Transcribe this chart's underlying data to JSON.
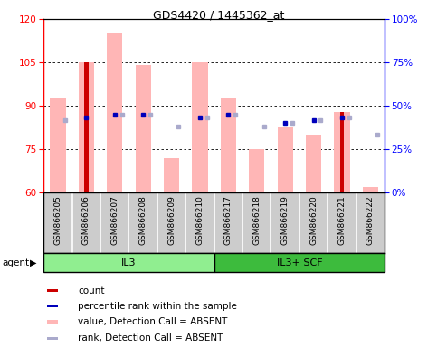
{
  "title": "GDS4420 / 1445362_at",
  "samples": [
    "GSM866205",
    "GSM866206",
    "GSM866207",
    "GSM866208",
    "GSM866209",
    "GSM866210",
    "GSM866217",
    "GSM866218",
    "GSM866219",
    "GSM866220",
    "GSM866221",
    "GSM866222"
  ],
  "pink_bar_tops": [
    93,
    105,
    115,
    104,
    72,
    105,
    93,
    75,
    83,
    80,
    88,
    62
  ],
  "red_bar_tops": [
    null,
    105,
    null,
    null,
    null,
    null,
    null,
    null,
    null,
    null,
    88,
    null
  ],
  "blue_square_y": [
    null,
    86,
    87,
    87,
    null,
    86,
    87,
    null,
    84,
    85,
    86,
    null
  ],
  "lavender_square_y": [
    85,
    null,
    87,
    87,
    83,
    86,
    87,
    83,
    84,
    85,
    86,
    80
  ],
  "ylim": [
    60,
    120
  ],
  "yticks_left": [
    60,
    75,
    90,
    105,
    120
  ],
  "yticks_right": [
    0,
    25,
    50,
    75,
    100
  ],
  "groups": [
    {
      "label": "IL3",
      "start": 0,
      "end": 5,
      "color": "#90ee90"
    },
    {
      "label": "IL3+ SCF",
      "start": 6,
      "end": 11,
      "color": "#3dbb3d"
    }
  ],
  "pink_color": "#ffb6b6",
  "red_color": "#cc0000",
  "blue_color": "#0000bb",
  "lavender_color": "#aaaacc",
  "legend_items": [
    {
      "color": "#cc0000",
      "label": "count"
    },
    {
      "color": "#0000bb",
      "label": "percentile rank within the sample"
    },
    {
      "color": "#ffb6b6",
      "label": "value, Detection Call = ABSENT"
    },
    {
      "color": "#aaaacc",
      "label": "rank, Detection Call = ABSENT"
    }
  ],
  "grid_yticks": [
    75,
    90,
    105
  ],
  "bar_bottom": 60,
  "right_ytick_labels": [
    "0%",
    "25%",
    "50%",
    "75%",
    "100%"
  ]
}
